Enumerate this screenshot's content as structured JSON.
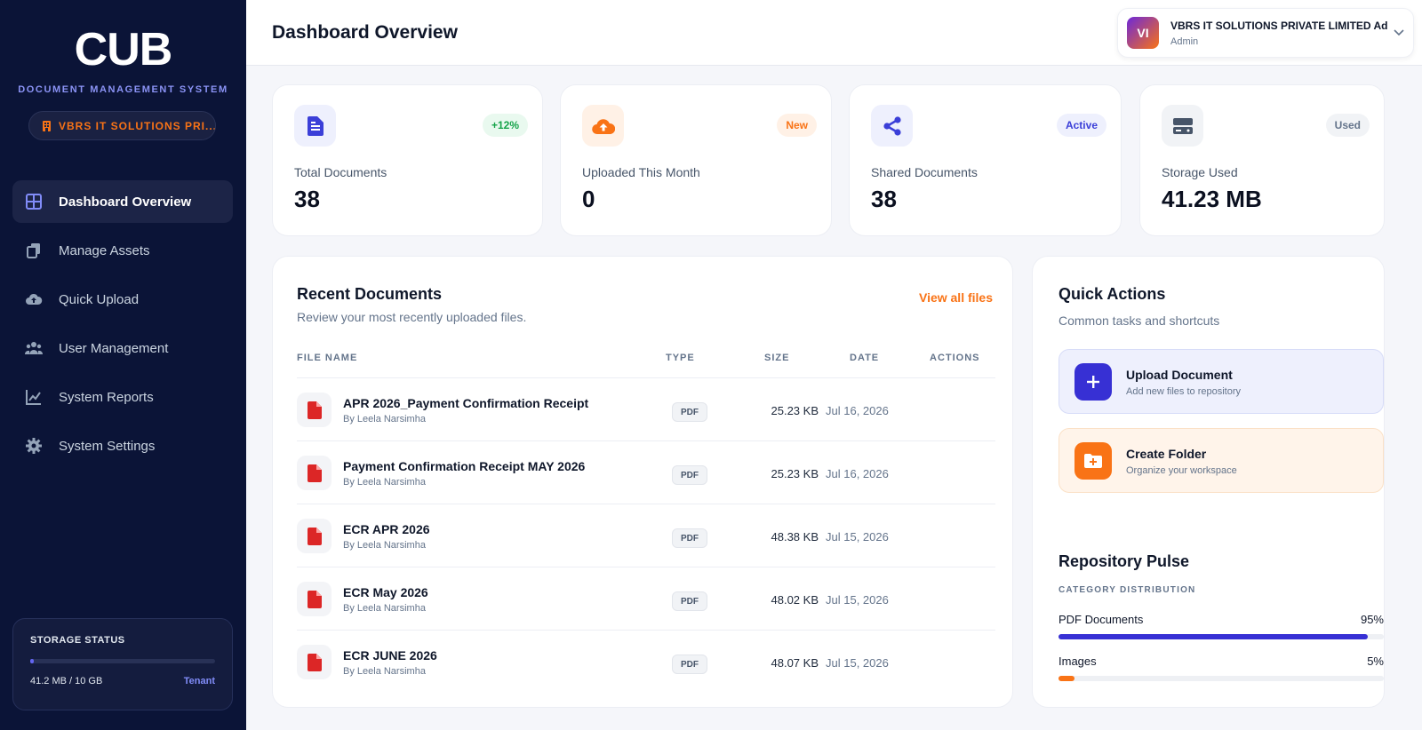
{
  "sidebar": {
    "logo": "CUB",
    "logo_sub": "DOCUMENT MANAGEMENT SYSTEM",
    "tenant": "VBRS IT SOLUTIONS PRI...",
    "items": [
      {
        "label": "Dashboard Overview",
        "icon": "grid-icon",
        "active": true
      },
      {
        "label": "Manage Assets",
        "icon": "files-icon"
      },
      {
        "label": "Quick Upload",
        "icon": "cloud-upload-icon"
      },
      {
        "label": "User Management",
        "icon": "users-icon"
      },
      {
        "label": "System Reports",
        "icon": "chart-line-icon"
      },
      {
        "label": "System Settings",
        "icon": "gear-icon"
      }
    ],
    "storage": {
      "title": "STORAGE STATUS",
      "used": "41.2 MB / 10 GB",
      "tenant_label": "Tenant",
      "fraction": 0.004
    }
  },
  "header": {
    "title": "Dashboard Overview",
    "user": {
      "initials": "VI",
      "name": "VBRS IT SOLUTIONS PRIVATE LIMITED Admin",
      "role": "Admin"
    }
  },
  "stats": [
    {
      "label": "Total Documents",
      "value": "38",
      "badge": "+12%",
      "icon": "document-icon",
      "accent": "#4f46e5"
    },
    {
      "label": "Uploaded This Month",
      "value": "0",
      "badge": "New",
      "icon": "cloud-upload-icon",
      "accent": "#f97316"
    },
    {
      "label": "Shared Documents",
      "value": "38",
      "badge": "Active",
      "icon": "share-icon",
      "accent": "#4f46e5"
    },
    {
      "label": "Storage Used",
      "value": "41.23 MB",
      "badge": "Used",
      "icon": "storage-icon",
      "accent": "#475569"
    }
  ],
  "recent": {
    "title": "Recent Documents",
    "subtitle": "Review your most recently uploaded files.",
    "view_all": "View all files",
    "columns": [
      "FILE NAME",
      "TYPE",
      "SIZE",
      "DATE",
      "ACTIONS"
    ],
    "rows": [
      {
        "name": "APR 2026_Payment Confirmation Receipt",
        "by": "By Leela Narsimha",
        "type": "PDF",
        "size": "25.23 KB",
        "date": "Jul 16, 2026"
      },
      {
        "name": "Payment Confirmation Receipt MAY 2026",
        "by": "By Leela Narsimha",
        "type": "PDF",
        "size": "25.23 KB",
        "date": "Jul 16, 2026"
      },
      {
        "name": "ECR APR 2026",
        "by": "By Leela Narsimha",
        "type": "PDF",
        "size": "48.38 KB",
        "date": "Jul 15, 2026"
      },
      {
        "name": "ECR May 2026",
        "by": "By Leela Narsimha",
        "type": "PDF",
        "size": "48.02 KB",
        "date": "Jul 15, 2026"
      },
      {
        "name": "ECR JUNE 2026",
        "by": "By Leela Narsimha",
        "type": "PDF",
        "size": "48.07 KB",
        "date": "Jul 15, 2026"
      }
    ]
  },
  "quick": {
    "title": "Quick Actions",
    "subtitle": "Common tasks and shortcuts",
    "actions": [
      {
        "title": "Upload Document",
        "subtitle": "Add new files to repository",
        "icon": "plus-icon"
      },
      {
        "title": "Create Folder",
        "subtitle": "Organize your workspace",
        "icon": "folder-plus-icon"
      }
    ]
  },
  "pulse": {
    "title": "Repository Pulse",
    "subtitle": "CATEGORY DISTRIBUTION",
    "items": [
      {
        "label": "PDF Documents",
        "percent": "95%",
        "fraction": 0.95,
        "color": "#3730d4"
      },
      {
        "label": "Images",
        "percent": "5%",
        "fraction": 0.05,
        "color": "#f97316"
      }
    ]
  }
}
